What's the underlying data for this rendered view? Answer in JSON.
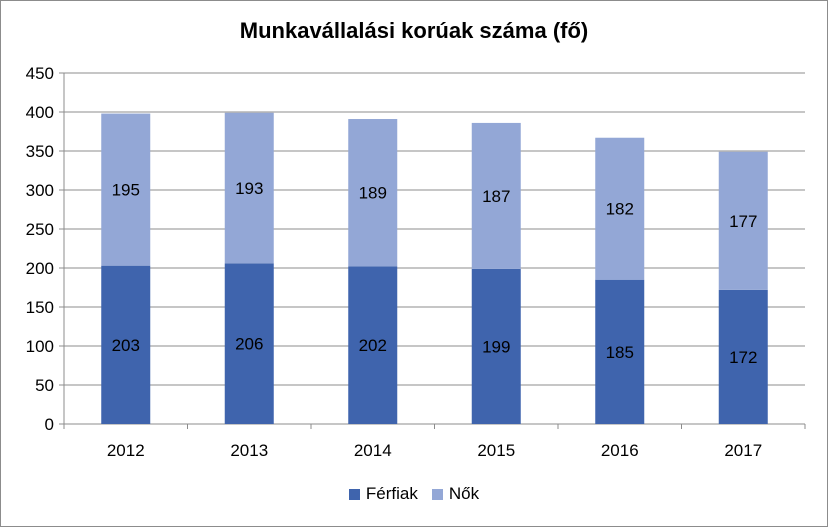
{
  "chart_data": {
    "type": "bar",
    "stacked": true,
    "title": "Munkavállalási korúak száma (fő)",
    "categories": [
      "2012",
      "2013",
      "2014",
      "2015",
      "2016",
      "2017"
    ],
    "series": [
      {
        "name": "Férfiak",
        "values": [
          203,
          206,
          202,
          199,
          185,
          172
        ],
        "color": "#3f64ad"
      },
      {
        "name": "Nők",
        "values": [
          195,
          193,
          189,
          187,
          182,
          177
        ],
        "color": "#93a7d6"
      }
    ],
    "ylim": [
      0,
      450
    ],
    "yticks": [
      0,
      50,
      100,
      150,
      200,
      250,
      300,
      350,
      400,
      450
    ],
    "grid": true,
    "legend_position": "bottom"
  }
}
